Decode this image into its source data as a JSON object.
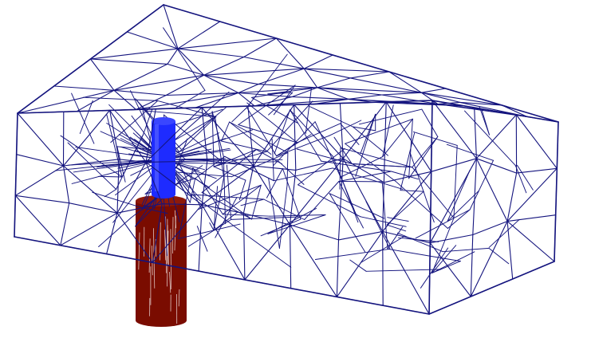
{
  "scene": {
    "background_color": "#ffffff",
    "mesh": {
      "kind": "tetrahedral-wireframe",
      "shape": "rectangular-box",
      "color": "#14147e"
    },
    "upper_cylinder": {
      "kind": "solid-cylinder",
      "color": "#1e2bff",
      "position": "inside-box"
    },
    "lower_cylinder": {
      "kind": "solid-cylinder",
      "color": "#7a0c00",
      "stripe_color": "#ffffff",
      "position": "extends-below-box"
    }
  }
}
